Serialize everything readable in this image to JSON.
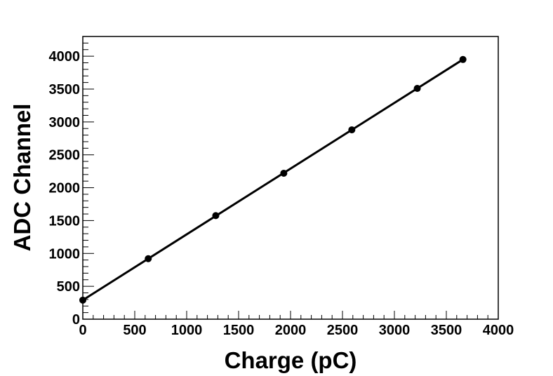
{
  "chart_data": {
    "type": "scatter",
    "title": "",
    "xlabel": "Charge (pC)",
    "ylabel": "ADC Channel",
    "xlim": [
      0,
      4000
    ],
    "ylim": [
      0,
      4300
    ],
    "x_ticks": [
      0,
      500,
      1000,
      1500,
      2000,
      2500,
      3000,
      3500,
      4000
    ],
    "y_ticks": [
      0,
      500,
      1000,
      1500,
      2000,
      2500,
      3000,
      3500,
      4000
    ],
    "x_tick_labels": [
      "0",
      "500",
      "1000",
      "1500",
      "2000",
      "2500",
      "3000",
      "3500",
      "4000"
    ],
    "y_tick_labels": [
      "0",
      "500",
      "1000",
      "1500",
      "2000",
      "2500",
      "3000",
      "3500",
      "4000"
    ],
    "grid": false,
    "legend": "none",
    "series": [
      {
        "points": [
          {
            "x": 0,
            "y": 290
          },
          {
            "x": 630,
            "y": 920
          },
          {
            "x": 1280,
            "y": 1575
          },
          {
            "x": 1935,
            "y": 2220
          },
          {
            "x": 2590,
            "y": 2880
          },
          {
            "x": 3220,
            "y": 3510
          },
          {
            "x": 3660,
            "y": 3950
          }
        ],
        "fit": {
          "x1": 0,
          "y1": 290,
          "x2": 3660,
          "y2": 3950
        },
        "color": "#000000"
      }
    ]
  }
}
